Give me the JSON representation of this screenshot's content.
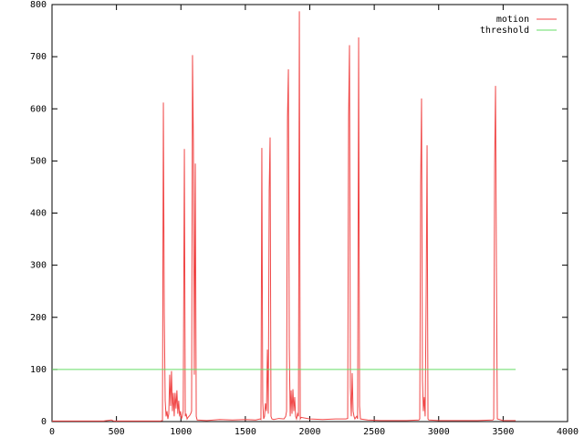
{
  "chart_data": {
    "type": "line",
    "series": [
      {
        "name": "motion",
        "color": "#f04848",
        "x": [
          0,
          100,
          200,
          300,
          400,
          460,
          480,
          500,
          600,
          700,
          800,
          840,
          857,
          864,
          871,
          878,
          885,
          892,
          899,
          906,
          913,
          920,
          927,
          934,
          941,
          948,
          955,
          962,
          969,
          976,
          983,
          990,
          997,
          1004,
          1011,
          1018,
          1027,
          1034,
          1041,
          1048,
          1055,
          1062,
          1069,
          1076,
          1083,
          1090,
          1097,
          1104,
          1112,
          1119,
          1126,
          1200,
          1300,
          1400,
          1500,
          1580,
          1614,
          1621,
          1628,
          1635,
          1642,
          1649,
          1656,
          1664,
          1671,
          1678,
          1685,
          1692,
          1699,
          1706,
          1720,
          1760,
          1800,
          1813,
          1820,
          1827,
          1834,
          1841,
          1848,
          1855,
          1862,
          1869,
          1876,
          1883,
          1890,
          1897,
          1905,
          1912,
          1919,
          1926,
          1933,
          2000,
          2100,
          2200,
          2280,
          2294,
          2301,
          2308,
          2315,
          2322,
          2329,
          2336,
          2343,
          2350,
          2357,
          2364,
          2371,
          2379,
          2386,
          2393,
          2450,
          2550,
          2650,
          2750,
          2846,
          2853,
          2860,
          2867,
          2874,
          2881,
          2888,
          2895,
          2903,
          2910,
          2917,
          2924,
          3000,
          3100,
          3200,
          3300,
          3420,
          3427,
          3434,
          3441,
          3448,
          3455,
          3500,
          3597
        ],
        "values": [
          1,
          1,
          1,
          1,
          1,
          3,
          1,
          1,
          1,
          1,
          1,
          1,
          2,
          612,
          208,
          40,
          10,
          20,
          5,
          15,
          90,
          30,
          97,
          20,
          55,
          10,
          55,
          25,
          60,
          15,
          40,
          10,
          20,
          5,
          10,
          20,
          523,
          10,
          15,
          5,
          8,
          10,
          12,
          15,
          20,
          703,
          533,
          90,
          495,
          10,
          3,
          2,
          4,
          3,
          4,
          3,
          5,
          4,
          525,
          37,
          5,
          10,
          35,
          20,
          138,
          15,
          443,
          545,
          10,
          5,
          4,
          6,
          5,
          10,
          20,
          585,
          676,
          142,
          10,
          60,
          15,
          62,
          20,
          47,
          10,
          5,
          15,
          10,
          787,
          5,
          8,
          5,
          4,
          5,
          5,
          6,
          585,
          722,
          65,
          10,
          93,
          20,
          10,
          5,
          8,
          10,
          5,
          737,
          30,
          5,
          3,
          2,
          2,
          2,
          3,
          5,
          452,
          620,
          80,
          20,
          47,
          10,
          245,
          530,
          5,
          3,
          2,
          2,
          2,
          2,
          3,
          5,
          487,
          644,
          296,
          5,
          2,
          2
        ]
      },
      {
        "name": "threshold",
        "color": "#66dd66",
        "x": [
          0,
          3597
        ],
        "values": [
          100,
          100
        ]
      }
    ],
    "xlim": [
      0,
      4000
    ],
    "xticks": [
      0,
      500,
      1000,
      1500,
      2000,
      2500,
      3000,
      3500,
      4000
    ],
    "ylim": [
      0,
      800
    ],
    "yticks": [
      0,
      100,
      200,
      300,
      400,
      500,
      600,
      700,
      800
    ],
    "legend": "upper right",
    "grid": false
  }
}
